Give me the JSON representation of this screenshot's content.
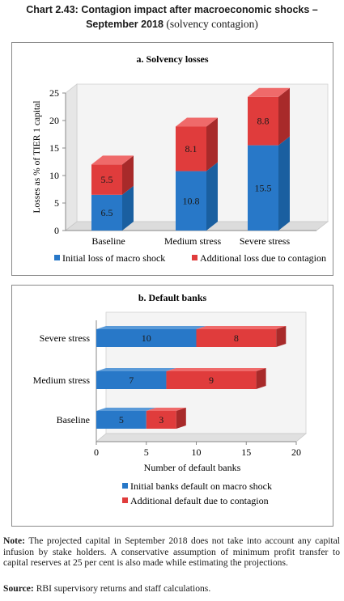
{
  "header": {
    "number": "Chart 2.43:",
    "title_bold": "Contagion impact after macroeconomic shocks – September 2018",
    "title_regular": "(solvency contagion)"
  },
  "colors": {
    "blue": "#2878c8",
    "red": "#e03c3c",
    "blue_dark": "#1a5fa0",
    "red_dark": "#a82a2a",
    "wall": "#eeeeee"
  },
  "chart_data": [
    {
      "type": "bar",
      "orientation": "vertical",
      "stacked": true,
      "title": "a. Solvency losses",
      "ylabel": "Losses as % of TIER 1 capital",
      "xlabel": "",
      "ylim": [
        0,
        25
      ],
      "yticks": [
        "0",
        "5",
        "10",
        "15",
        "20",
        "25"
      ],
      "categories": [
        "Baseline",
        "Medium stress",
        "Severe stress"
      ],
      "series": [
        {
          "name": "Initial loss of macro shock",
          "values": [
            6.5,
            10.8,
            15.5
          ],
          "labels": [
            "6.5",
            "10.8",
            "15.5"
          ]
        },
        {
          "name": "Additional loss due to contagion",
          "values": [
            5.5,
            8.1,
            8.8
          ],
          "labels": [
            "5.5",
            "8.1",
            "8.8"
          ]
        }
      ],
      "legend": "bottom",
      "grid": false
    },
    {
      "type": "bar",
      "orientation": "horizontal",
      "stacked": true,
      "title": "b. Default banks",
      "xlabel": "Number of default banks",
      "ylabel": "",
      "xlim": [
        0,
        20
      ],
      "xticks": [
        "0",
        "5",
        "10",
        "15",
        "20"
      ],
      "categories": [
        "Severe stress",
        "Medium stress",
        "Baseline"
      ],
      "series": [
        {
          "name": "Initial banks default on macro shock",
          "values": [
            10,
            7,
            5
          ],
          "labels": [
            "10",
            "7",
            "5"
          ]
        },
        {
          "name": "Additional default due to contagion",
          "values": [
            8,
            9,
            3
          ],
          "labels": [
            "8",
            "9",
            "3"
          ]
        }
      ],
      "legend": "bottom",
      "grid": false
    }
  ],
  "note": {
    "label": "Note:",
    "text": "The projected capital in September 2018 does not take into account any capital infusion by stake holders. A conservative assumption of minimum profit transfer to capital reserves at 25 per cent is also made while estimating the projections."
  },
  "source": {
    "label": "Source:",
    "text": "RBI supervisory returns and staff calculations."
  }
}
